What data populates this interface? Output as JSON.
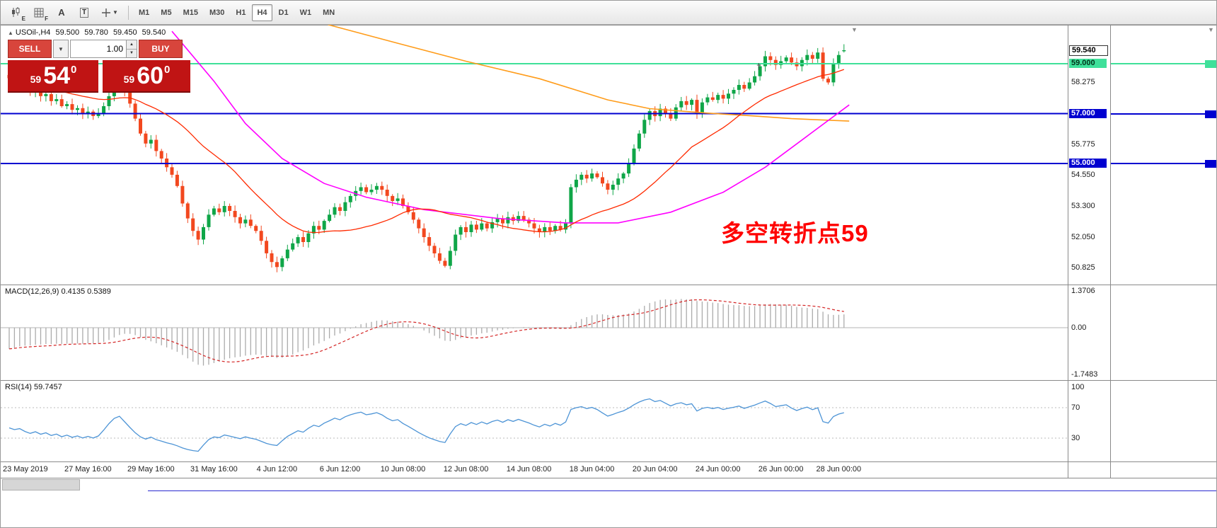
{
  "toolbar": {
    "candle_tool_sub": "E",
    "grid_tool_sub": "F",
    "text_tool_a": "A",
    "text_tool_t": "T",
    "timeframes": [
      "M1",
      "M5",
      "M15",
      "M30",
      "H1",
      "H4",
      "D1",
      "W1",
      "MN"
    ],
    "active_timeframe": "H4"
  },
  "header": {
    "expand_icon": "▲",
    "symbol": "USOil-,H4",
    "open": "59.500",
    "high": "59.780",
    "low": "59.450",
    "close": "59.540"
  },
  "trade": {
    "sell": "SELL",
    "buy": "BUY",
    "volume": "1.00",
    "bid": {
      "prefix": "59",
      "big": "54",
      "sup": "0"
    },
    "ask": {
      "prefix": "59",
      "big": "60",
      "sup": "0"
    }
  },
  "annotation": {
    "text": "多空转折点59",
    "color": "#FF0000"
  },
  "axis": {
    "current": "59.540",
    "tags": [
      {
        "text": "59.000",
        "price": 59.0,
        "type": "green"
      },
      {
        "text": "57.000",
        "price": 57.0,
        "type": "blue"
      },
      {
        "text": "55.000",
        "price": 55.0,
        "type": "blue"
      }
    ],
    "labels": [
      {
        "text": "58.275",
        "price": 58.275
      },
      {
        "text": "55.775",
        "price": 55.775
      },
      {
        "text": "54.550",
        "price": 54.55
      },
      {
        "text": "53.300",
        "price": 53.3
      },
      {
        "text": "52.050",
        "price": 52.05
      },
      {
        "text": "50.825",
        "price": 50.825
      }
    ]
  },
  "macd_panel": {
    "label": "MACD(12,26,9) 0.4135 0.5389",
    "max": "1.3706",
    "zero": "0.00",
    "min": "-1.7483"
  },
  "rsi_panel": {
    "label": "RSI(14) 59.7457",
    "level_100": "100",
    "level_70": "70",
    "level_30": "30"
  },
  "time_labels": [
    {
      "text": "23 May 2019",
      "index": 3
    },
    {
      "text": "27 May 16:00",
      "index": 15
    },
    {
      "text": "29 May 16:00",
      "index": 27
    },
    {
      "text": "31 May 16:00",
      "index": 39
    },
    {
      "text": "4 Jun 12:00",
      "index": 51
    },
    {
      "text": "6 Jun 12:00",
      "index": 63
    },
    {
      "text": "10 Jun 08:00",
      "index": 75
    },
    {
      "text": "12 Jun 08:00",
      "index": 87
    },
    {
      "text": "14 Jun 08:00",
      "index": 99
    },
    {
      "text": "18 Jun 04:00",
      "index": 111
    },
    {
      "text": "20 Jun 04:00",
      "index": 123
    },
    {
      "text": "24 Jun 00:00",
      "index": 135
    },
    {
      "text": "26 Jun 00:00",
      "index": 147
    },
    {
      "text": "28 Jun 00:00",
      "index": 158
    }
  ],
  "chart_data": {
    "type": "candlestick",
    "symbol": "USOil",
    "timeframe": "H4",
    "current": {
      "open": 59.5,
      "high": 59.78,
      "low": 59.45,
      "close": 59.54
    },
    "first_open": 58.55,
    "closes": [
      58.42,
      58.25,
      58.32,
      58.05,
      57.85,
      57.95,
      57.7,
      57.78,
      57.5,
      57.58,
      57.3,
      57.38,
      57.15,
      57.22,
      57.0,
      57.08,
      56.9,
      57.0,
      57.3,
      57.7,
      58.1,
      58.3,
      57.9,
      57.4,
      56.8,
      56.2,
      55.8,
      55.95,
      55.5,
      55.2,
      54.85,
      54.55,
      54.1,
      53.4,
      52.8,
      52.3,
      51.95,
      52.45,
      52.95,
      53.2,
      53.05,
      53.3,
      53.1,
      52.85,
      52.6,
      52.75,
      52.5,
      52.3,
      51.9,
      51.4,
      51.05,
      50.85,
      51.2,
      51.55,
      51.8,
      52.05,
      51.85,
      52.2,
      52.5,
      52.35,
      52.7,
      52.95,
      53.25,
      53.1,
      53.45,
      53.7,
      53.9,
      54.05,
      53.85,
      53.95,
      54.1,
      53.95,
      53.7,
      53.5,
      53.6,
      53.3,
      53.05,
      52.75,
      52.4,
      52.05,
      51.7,
      51.4,
      51.1,
      50.9,
      51.5,
      52.15,
      52.45,
      52.25,
      52.55,
      52.35,
      52.6,
      52.4,
      52.65,
      52.8,
      52.6,
      52.85,
      52.7,
      52.9,
      52.75,
      52.6,
      52.4,
      52.25,
      52.45,
      52.3,
      52.5,
      52.35,
      52.6,
      54.05,
      54.35,
      54.55,
      54.4,
      54.6,
      54.45,
      54.2,
      53.95,
      54.15,
      54.4,
      54.6,
      55.0,
      55.6,
      56.2,
      56.75,
      57.1,
      56.9,
      57.2,
      57.0,
      56.8,
      57.25,
      57.5,
      57.35,
      57.55,
      57.0,
      57.45,
      57.65,
      57.55,
      57.75,
      57.6,
      57.8,
      57.95,
      58.15,
      58.0,
      58.25,
      58.5,
      58.9,
      59.3,
      59.15,
      58.95,
      59.1,
      59.25,
      59.05,
      58.9,
      59.15,
      59.35,
      59.2,
      59.45,
      58.4,
      58.25,
      59.0,
      59.35,
      59.54
    ],
    "hlines": [
      {
        "price": 59.0,
        "color": "#3FE09A",
        "label": "59.000"
      },
      {
        "price": 57.0,
        "color": "#0000D0",
        "label": "57.000"
      },
      {
        "price": 55.0,
        "color": "#0000D0",
        "label": "55.000"
      }
    ],
    "overlays": {
      "orange_points": [
        [
          52,
          61.3
        ],
        [
          61,
          60.55
        ],
        [
          74,
          59.82
        ],
        [
          87,
          59.1
        ],
        [
          101,
          58.4
        ],
        [
          114,
          57.55
        ],
        [
          122,
          57.2
        ],
        [
          133,
          57.02
        ],
        [
          141,
          56.92
        ],
        [
          149,
          56.8
        ],
        [
          160,
          56.7
        ]
      ],
      "magenta_points": [
        [
          31,
          60.3
        ],
        [
          33,
          59.8
        ],
        [
          39,
          58.3
        ],
        [
          45,
          56.6
        ],
        [
          52,
          55.2
        ],
        [
          60,
          54.2
        ],
        [
          68,
          53.65
        ],
        [
          79,
          53.15
        ],
        [
          93,
          52.8
        ],
        [
          106,
          52.62
        ],
        [
          116,
          52.62
        ],
        [
          126,
          53.05
        ],
        [
          136,
          53.85
        ],
        [
          144,
          54.85
        ],
        [
          152,
          56.1
        ],
        [
          160,
          57.35
        ]
      ],
      "red_ma_period": 24
    },
    "indicators": [
      {
        "name": "MACD",
        "params": [
          12,
          26,
          9
        ],
        "main": 0.4135,
        "signal": 0.5389,
        "scale_max": 1.3706,
        "scale_min": -1.7483
      },
      {
        "name": "RSI",
        "params": [
          14
        ],
        "value": 59.7457,
        "levels": [
          100,
          70,
          30
        ]
      }
    ],
    "colors": {
      "up": "#0FA648",
      "down": "#F2481F",
      "ma_orange": "#FF9C1A",
      "ma_magenta": "#FF00FF",
      "ma_red": "#FF2A00",
      "hline_green": "#3FE09A",
      "hline_blue": "#0000D0",
      "macd_hist": "#ABABAB",
      "macd_signal": "#D42626",
      "rsi_line": "#4D94D6",
      "annotation_red": "#FF0000",
      "trade_button_red": "#D8453C",
      "trade_price_red": "#C01414"
    },
    "x_axis_label_count": 14
  }
}
